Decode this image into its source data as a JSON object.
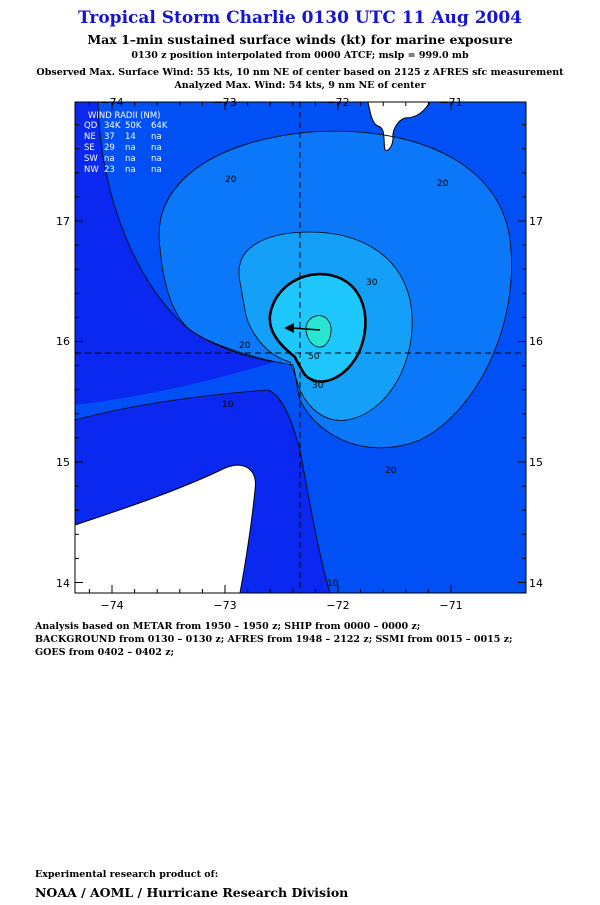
{
  "header": {
    "title": "Tropical Storm Charlie 0130 UTC 11 Aug 2004",
    "subtitle": "Max 1–min sustained surface winds (kt) for marine exposure",
    "position_note": "0130 z position interpolated from 0000 ATCF; mslp = 999.0 mb",
    "observed_max": "Observed Max. Surface Wind: 55 kts, 10 nm NE of center based on 2125 z AFRES sfc measurement",
    "analyzed_max": "Analyzed Max. Wind: 54 kts, 9 nm NE of center"
  },
  "map": {
    "lon_ticks": [
      "−74",
      "−73",
      "−72",
      "−71"
    ],
    "lat_ticks": [
      "17",
      "16",
      "15",
      "14"
    ],
    "contour_labels": [
      "20",
      "20",
      "30",
      "20",
      "10",
      "20",
      "30",
      "10",
      "50"
    ],
    "colors": {
      "c0": "#0a28f0",
      "c10": "#0050f5",
      "c20": "#0a78f8",
      "c30": "#14a0f8",
      "c40": "#1ec8ff",
      "c50": "#28e6d2",
      "land": "#ffffff",
      "title": "#1414d2"
    }
  },
  "wind_radii": {
    "heading": "WIND RADII (NM)",
    "columns": [
      "QD",
      "34K",
      "50K",
      "64K"
    ],
    "rows": [
      [
        "NE",
        "37",
        "14",
        "na"
      ],
      [
        "SE",
        "29",
        "na",
        "na"
      ],
      [
        "SW",
        "na",
        "na",
        "na"
      ],
      [
        "NW",
        "23",
        "na",
        "na"
      ]
    ]
  },
  "analysis": {
    "line1": "Analysis based on  METAR from 1950 – 1950 z;  SHIP from 0000 – 0000 z;",
    "line2": "BACKGROUND from 0130 – 0130 z;  AFRES from 1948 – 2122 z;  SSMI from 0015 – 0015 z;",
    "line3": "GOES from 0402 – 0402 z;"
  },
  "footer": {
    "experimental": "Experimental research product of:",
    "org": "NOAA / AOML / Hurricane Research Division"
  }
}
